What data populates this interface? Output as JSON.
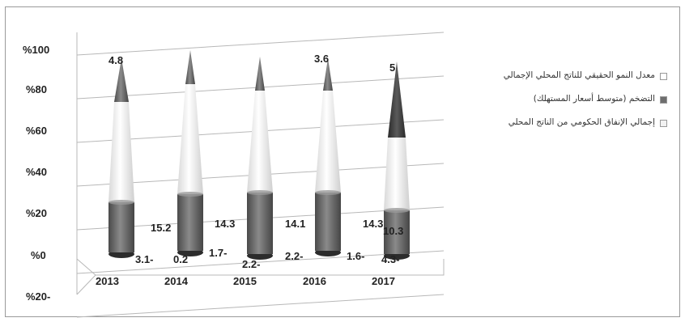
{
  "chart_data": {
    "type": "bar",
    "subtype": "stacked-100-percent-3d-cone",
    "categories": [
      "2013",
      "2014",
      "2015",
      "2016",
      "2017"
    ],
    "y_ticks": [
      "%100",
      "%80",
      "%60",
      "%40",
      "%20",
      "%0",
      "%20-"
    ],
    "ylim": [
      -20,
      100
    ],
    "grid": true,
    "legend_position": "right",
    "series": [
      {
        "name": "معدل النمو الحقيقي للناتج المحلي الإجمالي",
        "values": [
          4.8,
          0.2,
          -1.7,
          3.6,
          5
        ],
        "labels": [
          "4.8",
          "0.2",
          "1.7-",
          "3.6",
          "5"
        ],
        "color": "#ffffff"
      },
      {
        "name": "التضخم (متوسط أسعار المستهلك)",
        "values": [
          -3.1,
          15.2,
          14.3,
          14.1,
          14.3
        ],
        "labels": [
          "3.1-",
          "15.2",
          "14.3",
          "14.1",
          "14.3"
        ],
        "color": "#6e6e6e"
      },
      {
        "name": "إجمالي الإنفاق الحكومي من الناتج المحلي",
        "values": [
          null,
          null,
          -2.2,
          -2.2,
          -1.6
        ],
        "labels": [
          "",
          "",
          "2.2-",
          "2.2-",
          "1.6-"
        ],
        "color": "#f2f2f2"
      }
    ],
    "extra_labels": [
      "10.3",
      "4.3-"
    ]
  }
}
